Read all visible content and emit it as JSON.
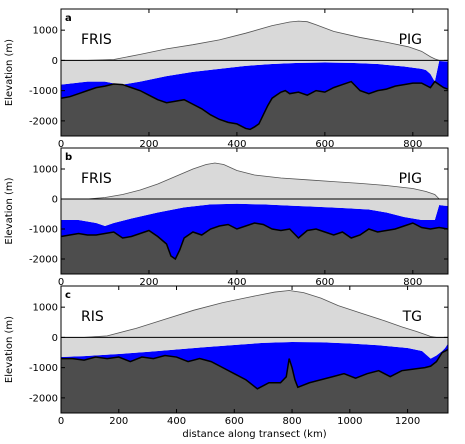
{
  "chart_data": [
    {
      "type": "area",
      "panel": "a",
      "left_label": "FRIS",
      "right_label": "PIG",
      "ylabel": "Elevation (m)",
      "xlabel": "",
      "xlim": [
        0,
        880
      ],
      "ylim": [
        -2500,
        1700
      ],
      "xticks": [
        0,
        200,
        400,
        600,
        800
      ],
      "yticks": [
        1000,
        0,
        -1000,
        -2000
      ],
      "surface": {
        "x": [
          0,
          60,
          120,
          180,
          240,
          300,
          360,
          420,
          480,
          520,
          540,
          560,
          580,
          620,
          680,
          740,
          790,
          820,
          840,
          850,
          860,
          880
        ],
        "y": [
          0,
          0,
          30,
          200,
          380,
          520,
          680,
          900,
          1150,
          1270,
          1300,
          1280,
          1180,
          960,
          760,
          600,
          450,
          300,
          120,
          50,
          0,
          0
        ]
      },
      "bed": {
        "x": [
          0,
          20,
          40,
          60,
          80,
          100,
          120,
          140,
          160,
          180,
          200,
          220,
          240,
          260,
          280,
          300,
          320,
          340,
          360,
          380,
          400,
          420,
          430,
          440,
          450,
          460,
          470,
          480,
          490,
          500,
          510,
          520,
          540,
          560,
          580,
          600,
          620,
          640,
          660,
          680,
          700,
          720,
          740,
          760,
          780,
          800,
          820,
          840,
          850,
          860,
          870,
          880
        ],
        "y": [
          -1250,
          -1200,
          -1100,
          -1000,
          -900,
          -850,
          -780,
          -800,
          -900,
          -1000,
          -1150,
          -1300,
          -1400,
          -1350,
          -1300,
          -1450,
          -1600,
          -1800,
          -1950,
          -2050,
          -2100,
          -2250,
          -2280,
          -2200,
          -2100,
          -1800,
          -1500,
          -1250,
          -1150,
          -1050,
          -1000,
          -1100,
          -1050,
          -1150,
          -1000,
          -1050,
          -900,
          -800,
          -700,
          -1000,
          -1100,
          -1000,
          -950,
          -850,
          -800,
          -750,
          -750,
          -900,
          -700,
          -800,
          -900,
          -950
        ]
      },
      "ice_bottom": {
        "x": [
          0,
          60,
          100,
          120,
          140,
          180,
          240,
          300,
          360,
          420,
          480,
          540,
          600,
          660,
          720,
          780,
          820,
          830,
          840,
          850,
          860,
          870,
          880
        ],
        "y": [
          -800,
          -700,
          -700,
          -760,
          -800,
          -700,
          -520,
          -380,
          -280,
          -180,
          -120,
          -80,
          -70,
          -80,
          -120,
          -200,
          -280,
          -320,
          -450,
          -700,
          -20,
          -30,
          -40
        ]
      }
    },
    {
      "type": "area",
      "panel": "b",
      "left_label": "FRIS",
      "right_label": "PIG",
      "ylabel": "Elevation (m)",
      "xlabel": "",
      "xlim": [
        0,
        880
      ],
      "ylim": [
        -2500,
        1700
      ],
      "xticks": [
        0,
        200,
        400,
        600,
        800
      ],
      "yticks": [
        1000,
        0,
        -1000,
        -2000
      ],
      "surface": {
        "x": [
          0,
          60,
          100,
          140,
          180,
          220,
          260,
          300,
          330,
          350,
          370,
          400,
          440,
          500,
          560,
          620,
          680,
          740,
          800,
          830,
          850,
          860,
          880
        ],
        "y": [
          0,
          0,
          50,
          150,
          300,
          500,
          750,
          1000,
          1150,
          1200,
          1150,
          950,
          800,
          700,
          640,
          580,
          520,
          450,
          350,
          250,
          150,
          0,
          0
        ]
      },
      "bed": {
        "x": [
          0,
          20,
          40,
          60,
          80,
          100,
          120,
          140,
          160,
          180,
          200,
          220,
          240,
          250,
          260,
          270,
          280,
          300,
          320,
          340,
          360,
          380,
          400,
          420,
          440,
          460,
          480,
          500,
          520,
          540,
          560,
          580,
          600,
          620,
          640,
          660,
          680,
          700,
          720,
          740,
          760,
          780,
          800,
          820,
          840,
          860,
          880
        ],
        "y": [
          -1250,
          -1200,
          -1150,
          -1200,
          -1200,
          -1150,
          -1100,
          -1300,
          -1250,
          -1150,
          -1050,
          -1250,
          -1500,
          -1900,
          -2000,
          -1700,
          -1300,
          -1100,
          -1200,
          -1000,
          -900,
          -850,
          -1000,
          -900,
          -800,
          -850,
          -1000,
          -1050,
          -1000,
          -1300,
          -1050,
          -1000,
          -1100,
          -1200,
          -1100,
          -1300,
          -1200,
          -1000,
          -1100,
          -1050,
          -1000,
          -900,
          -800,
          -950,
          -1000,
          -950,
          -1000
        ]
      },
      "ice_bottom": {
        "x": [
          0,
          40,
          80,
          100,
          120,
          160,
          220,
          280,
          340,
          400,
          460,
          520,
          580,
          640,
          700,
          740,
          780,
          800,
          820,
          840,
          850,
          860,
          870,
          880
        ],
        "y": [
          -700,
          -700,
          -800,
          -900,
          -800,
          -650,
          -450,
          -280,
          -180,
          -160,
          -180,
          -220,
          -260,
          -300,
          -350,
          -450,
          -600,
          -650,
          -700,
          -700,
          -700,
          -200,
          -220,
          -230
        ]
      }
    },
    {
      "type": "area",
      "panel": "c",
      "left_label": "RIS",
      "right_label": "TG",
      "ylabel": "Elevation (m)",
      "xlabel": "distance along transect (km)",
      "xlim": [
        0,
        1340
      ],
      "ylim": [
        -2500,
        1700
      ],
      "xticks": [
        0,
        200,
        400,
        600,
        800,
        1000,
        1200
      ],
      "yticks": [
        1000,
        0,
        -1000,
        -2000
      ],
      "surface": {
        "x": [
          0,
          80,
          160,
          260,
          360,
          460,
          560,
          660,
          740,
          790,
          840,
          900,
          960,
          1040,
          1120,
          1180,
          1230,
          1260,
          1280,
          1300,
          1340
        ],
        "y": [
          0,
          0,
          50,
          300,
          600,
          900,
          1150,
          1350,
          1500,
          1550,
          1480,
          1300,
          1050,
          800,
          550,
          350,
          200,
          100,
          30,
          0,
          0
        ]
      },
      "bed": {
        "x": [
          0,
          40,
          80,
          120,
          160,
          200,
          240,
          280,
          320,
          360,
          400,
          440,
          480,
          520,
          560,
          600,
          640,
          680,
          720,
          760,
          780,
          790,
          800,
          810,
          820,
          860,
          900,
          940,
          980,
          1020,
          1060,
          1100,
          1140,
          1180,
          1220,
          1260,
          1280,
          1300,
          1320,
          1340
        ],
        "y": [
          -700,
          -700,
          -750,
          -650,
          -700,
          -650,
          -800,
          -650,
          -700,
          -600,
          -650,
          -800,
          -700,
          -800,
          -1000,
          -1200,
          -1400,
          -1700,
          -1500,
          -1500,
          -1300,
          -700,
          -1000,
          -1400,
          -1650,
          -1500,
          -1400,
          -1300,
          -1200,
          -1350,
          -1200,
          -1100,
          -1300,
          -1100,
          -1050,
          -1000,
          -950,
          -800,
          -500,
          -400
        ]
      },
      "ice_bottom": {
        "x": [
          0,
          80,
          200,
          300,
          400,
          500,
          600,
          700,
          800,
          900,
          1000,
          1100,
          1200,
          1250,
          1280,
          1300,
          1320,
          1330,
          1340
        ],
        "y": [
          -650,
          -620,
          -550,
          -480,
          -400,
          -320,
          -250,
          -180,
          -150,
          -160,
          -200,
          -260,
          -350,
          -450,
          -700,
          -600,
          -450,
          -350,
          -200
        ]
      }
    }
  ],
  "colors": {
    "ice": "#d9d9d9",
    "ice_outline": "#555555",
    "bed_fill": "#4d4d4d",
    "bed_outline": "#000000",
    "ocean": "#0000ff",
    "background": "#ffffff"
  }
}
